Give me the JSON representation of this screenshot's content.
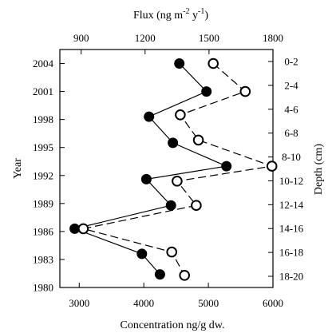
{
  "chart_data": {
    "type": "line",
    "axes": {
      "bottom": {
        "label": "Concentration ng/g dw.",
        "range": [
          2700,
          6000
        ],
        "ticks": [
          3000,
          4000,
          5000,
          6000
        ]
      },
      "top": {
        "label_parts": [
          "Flux (ng m",
          "-2",
          " y",
          "-1",
          ")"
        ],
        "range": [
          800,
          1800
        ],
        "ticks": [
          900,
          1200,
          1500,
          1800
        ]
      },
      "left": {
        "label": "Year",
        "range": [
          1980,
          2005.5
        ],
        "ticks": [
          1980,
          1983,
          1986,
          1989,
          1992,
          1995,
          1998,
          2001,
          2004
        ]
      },
      "right": {
        "label": "Depth (cm)",
        "categories": [
          "0-2",
          "2-4",
          "4-6",
          "6-8",
          "8-10",
          "10-12",
          "12-14",
          "14-16",
          "16-18",
          "18-20"
        ]
      }
    },
    "series": [
      {
        "name": "",
        "x_axis": "bottom",
        "marker": "filled-circle",
        "line_style": "solid",
        "color": "#000000",
        "points": [
          {
            "x": 4550,
            "y": 2004
          },
          {
            "x": 4970,
            "y": 2001
          },
          {
            "x": 4080,
            "y": 1998.3
          },
          {
            "x": 4450,
            "y": 1995.5
          },
          {
            "x": 5280,
            "y": 1993
          },
          {
            "x": 4040,
            "y": 1991.6
          },
          {
            "x": 4420,
            "y": 1988.8
          },
          {
            "x": 2930,
            "y": 1986.3
          },
          {
            "x": 3970,
            "y": 1983.6
          },
          {
            "x": 4250,
            "y": 1981.4
          }
        ]
      },
      {
        "name": "",
        "x_axis": "top",
        "marker": "open-circle",
        "line_style": "dashed",
        "color": "#000000",
        "points": [
          {
            "x": 1520,
            "y": 2004
          },
          {
            "x": 1670,
            "y": 2001
          },
          {
            "x": 1365,
            "y": 1998.5
          },
          {
            "x": 1450,
            "y": 1995.8
          },
          {
            "x": 1795,
            "y": 1993
          },
          {
            "x": 1350,
            "y": 1991.4
          },
          {
            "x": 1440,
            "y": 1988.8
          },
          {
            "x": 910,
            "y": 1986.3
          },
          {
            "x": 1325,
            "y": 1983.8
          },
          {
            "x": 1385,
            "y": 1981.3
          }
        ]
      }
    ],
    "grid": false,
    "legend": "none"
  }
}
